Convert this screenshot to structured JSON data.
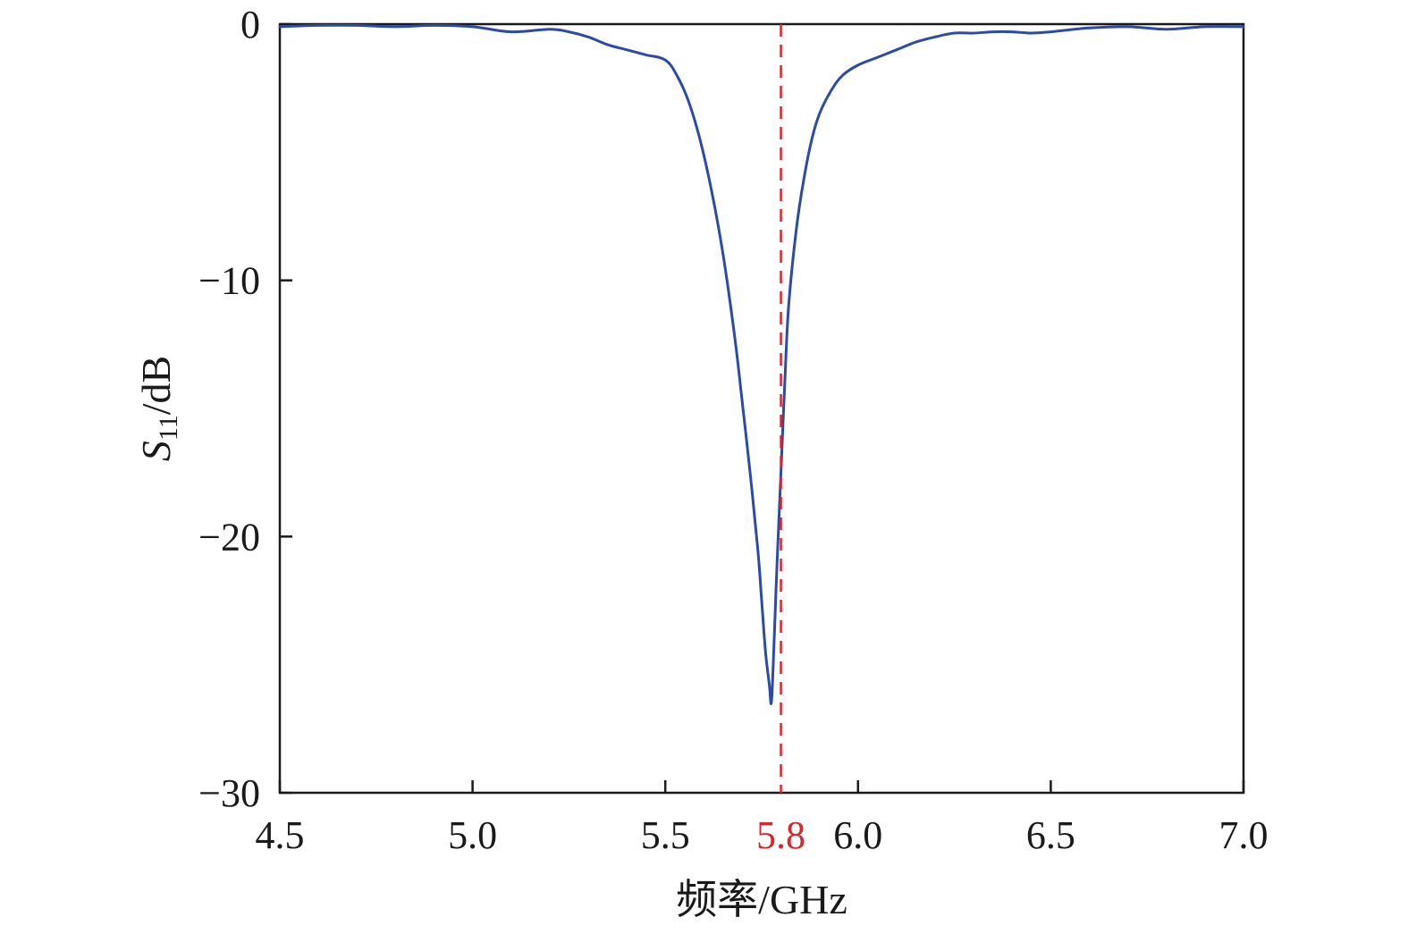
{
  "chart_data": {
    "type": "line",
    "title": "",
    "xlabel": "频率/GHz",
    "ylabel": {
      "symbol": "S",
      "subscript": "11",
      "unit": "/dB"
    },
    "xlim": [
      4.5,
      7.0
    ],
    "ylim": [
      -30,
      0
    ],
    "xticks": [
      4.5,
      5.0,
      5.5,
      6.0,
      6.5,
      7.0
    ],
    "xtick_labels": [
      "4.5",
      "5.0",
      "5.5",
      "6.0",
      "6.5",
      "7.0"
    ],
    "yticks": [
      0,
      -10,
      -20,
      -30
    ],
    "ytick_labels": [
      "0",
      "−10",
      "−20",
      "−30"
    ],
    "grid": false,
    "legend": "none",
    "series": [
      {
        "color": "#2c4aa8",
        "x": [
          4.5,
          4.6,
          4.7,
          4.8,
          4.9,
          5.0,
          5.1,
          5.2,
          5.25,
          5.3,
          5.35,
          5.4,
          5.45,
          5.5,
          5.53,
          5.56,
          5.59,
          5.62,
          5.65,
          5.68,
          5.7,
          5.72,
          5.74,
          5.75,
          5.76,
          5.77,
          5.775,
          5.78,
          5.785,
          5.79,
          5.8,
          5.81,
          5.82,
          5.84,
          5.86,
          5.88,
          5.9,
          5.93,
          5.96,
          6.0,
          6.05,
          6.1,
          6.15,
          6.2,
          6.25,
          6.3,
          6.35,
          6.4,
          6.45,
          6.5,
          6.6,
          6.7,
          6.8,
          6.9,
          7.0
        ],
        "y": [
          -0.1,
          -0.05,
          -0.05,
          -0.1,
          -0.05,
          -0.1,
          -0.3,
          -0.2,
          -0.3,
          -0.5,
          -0.8,
          -1.0,
          -1.2,
          -1.4,
          -2.0,
          -3.0,
          -4.5,
          -6.5,
          -9.0,
          -12.2,
          -14.8,
          -17.5,
          -20.5,
          -22.5,
          -24.5,
          -25.8,
          -26.5,
          -25.0,
          -23.0,
          -21.0,
          -17.5,
          -14.0,
          -11.0,
          -8.0,
          -6.0,
          -4.5,
          -3.5,
          -2.6,
          -2.0,
          -1.6,
          -1.3,
          -1.0,
          -0.7,
          -0.5,
          -0.35,
          -0.35,
          -0.3,
          -0.3,
          -0.35,
          -0.3,
          -0.15,
          -0.1,
          -0.2,
          -0.1,
          -0.1
        ]
      }
    ],
    "annotations": [
      {
        "type": "vertical_dashed_line",
        "x": 5.8,
        "label": "5.8",
        "color": "#d9262c"
      }
    ]
  }
}
